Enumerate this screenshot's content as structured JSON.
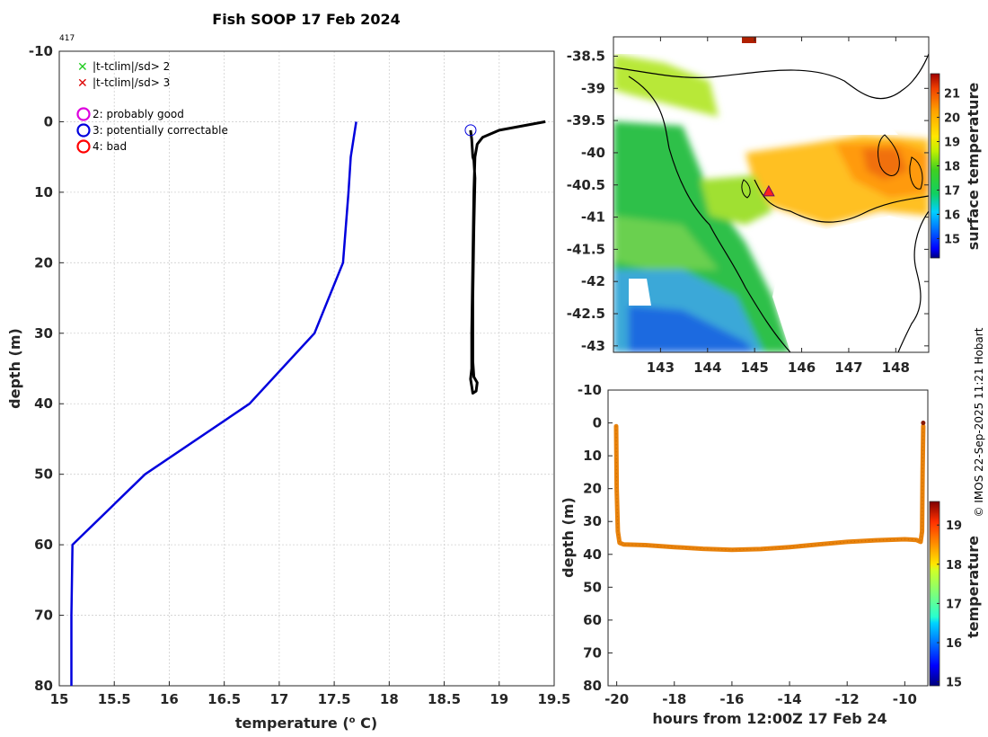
{
  "title": "Fish SOOP 17 Feb 2024",
  "profile_id": "417",
  "credit": "© IMOS 22-Sep-2025 11:21 Hobart",
  "legend": {
    "flag1": "|t-tclim|/sd> 2",
    "flag2": "|t-tclim|/sd> 3",
    "qc2": "2: probably good",
    "qc3": "3: potentially correctable",
    "qc4": "4: bad"
  },
  "colors": {
    "climatology": "#0000dd",
    "profile": "#000000",
    "flag1": "#22cc22",
    "flag2": "#dd0000",
    "qc2": "#dd00dd",
    "qc3": "#0000dd",
    "qc4": "#ff0000",
    "trace": "#e8820c"
  },
  "chart_data": [
    {
      "id": "profile",
      "type": "line",
      "title": "Fish SOOP 17 Feb 2024",
      "xlabel": "temperature (° C)",
      "ylabel": "depth (m)",
      "xlim": [
        15,
        19.5
      ],
      "ylim": [
        -10,
        80
      ],
      "y_reversed": true,
      "xticks": [
        15,
        15.5,
        16,
        16.5,
        17,
        17.5,
        18,
        18.5,
        19,
        19.5
      ],
      "xtick_labels": [
        "15",
        "15.5",
        "16",
        "16.5",
        "17",
        "17.5",
        "18",
        "18.5",
        "19",
        "19.5"
      ],
      "yticks": [
        -10,
        0,
        10,
        20,
        30,
        40,
        50,
        60,
        70,
        80
      ],
      "ytick_labels": [
        "-10",
        "0",
        "10",
        "20",
        "30",
        "40",
        "50",
        "60",
        "70",
        "80"
      ],
      "grid": true,
      "series": [
        {
          "name": "climatology",
          "color": "#0000dd",
          "points": [
            [
              17.7,
              0
            ],
            [
              17.65,
              5
            ],
            [
              17.63,
              10
            ],
            [
              17.58,
              20
            ],
            [
              17.32,
              30
            ],
            [
              16.73,
              40
            ],
            [
              15.78,
              50
            ],
            [
              15.12,
              60
            ],
            [
              15.11,
              70
            ],
            [
              15.11,
              80
            ]
          ]
        },
        {
          "name": "profile",
          "color": "#000000",
          "points": [
            [
              19.42,
              0
            ],
            [
              19.0,
              1.2
            ],
            [
              18.85,
              2.2
            ],
            [
              18.8,
              3.2
            ],
            [
              18.78,
              5
            ],
            [
              18.77,
              10
            ],
            [
              18.76,
              20
            ],
            [
              18.75,
              30
            ],
            [
              18.75,
              35
            ],
            [
              18.74,
              36.5
            ],
            [
              18.75,
              37.5
            ],
            [
              18.76,
              38.5
            ],
            [
              18.79,
              38.2
            ],
            [
              18.8,
              37
            ],
            [
              18.77,
              36.2
            ],
            [
              18.76,
              34
            ],
            [
              18.76,
              25
            ],
            [
              18.77,
              15
            ],
            [
              18.78,
              8
            ],
            [
              18.77,
              5.5
            ],
            [
              18.76,
              5
            ],
            [
              18.75,
              2.5
            ],
            [
              18.74,
              1.2
            ]
          ]
        }
      ],
      "markers": [
        {
          "name": "potentially-correctable",
          "x": 18.74,
          "y": 1.2,
          "color": "#0000dd"
        }
      ]
    },
    {
      "id": "map",
      "type": "heatmap",
      "title": "",
      "xlim": [
        142,
        148.7
      ],
      "ylim": [
        -43.1,
        -38.2
      ],
      "xticks": [
        143,
        144,
        145,
        146,
        147,
        148
      ],
      "xtick_labels": [
        "143",
        "144",
        "145",
        "146",
        "147",
        "148"
      ],
      "yticks": [
        -38.5,
        -39,
        -39.5,
        -40,
        -40.5,
        -41,
        -41.5,
        -42,
        -42.5,
        -43
      ],
      "ytick_labels": [
        "-38.5",
        "-39",
        "-39.5",
        "-40",
        "-40.5",
        "-41",
        "-41.5",
        "-42",
        "-42.5",
        "-43"
      ],
      "colorbar": {
        "label": "surface temperature",
        "range": [
          14.2,
          21.8
        ],
        "ticks": [
          15,
          16,
          17,
          18,
          19,
          20,
          21
        ],
        "tick_labels": [
          "15",
          "16",
          "17",
          "18",
          "19",
          "20",
          "21"
        ]
      },
      "location_marker": {
        "lon": 145.3,
        "lat": -40.6
      }
    },
    {
      "id": "trace",
      "type": "scatter",
      "xlabel": "hours from 12:00Z 17 Feb 24",
      "ylabel": "depth (m)",
      "xlim": [
        -20.3,
        -9.2
      ],
      "ylim": [
        -10,
        80
      ],
      "y_reversed": true,
      "xticks": [
        -20,
        -18,
        -16,
        -14,
        -12,
        -10
      ],
      "xtick_labels": [
        "-20",
        "-18",
        "-16",
        "-14",
        "-12",
        "-10"
      ],
      "yticks": [
        -10,
        0,
        10,
        20,
        30,
        40,
        50,
        60,
        70,
        80
      ],
      "ytick_labels": [
        "-10",
        "0",
        "10",
        "20",
        "30",
        "40",
        "50",
        "60",
        "70",
        "80"
      ],
      "colorbar": {
        "label": "temperature",
        "range": [
          14.9,
          19.6
        ],
        "ticks": [
          15,
          16,
          17,
          18,
          19
        ],
        "tick_labels": [
          "15",
          "16",
          "17",
          "18",
          "19"
        ]
      },
      "track": [
        [
          -20.02,
          1
        ],
        [
          -20.0,
          20
        ],
        [
          -19.96,
          33
        ],
        [
          -19.9,
          36.5
        ],
        [
          -19.75,
          37
        ],
        [
          -19,
          37.2
        ],
        [
          -18,
          37.8
        ],
        [
          -17,
          38.3
        ],
        [
          -16,
          38.6
        ],
        [
          -15,
          38.4
        ],
        [
          -14,
          37.8
        ],
        [
          -13,
          37
        ],
        [
          -12,
          36.2
        ],
        [
          -11,
          35.7
        ],
        [
          -10,
          35.4
        ],
        [
          -9.6,
          35.6
        ],
        [
          -9.45,
          36.2
        ],
        [
          -9.4,
          33
        ],
        [
          -9.38,
          15
        ],
        [
          -9.36,
          1
        ]
      ],
      "top_point": {
        "x": -9.36,
        "y": 0
      }
    }
  ]
}
